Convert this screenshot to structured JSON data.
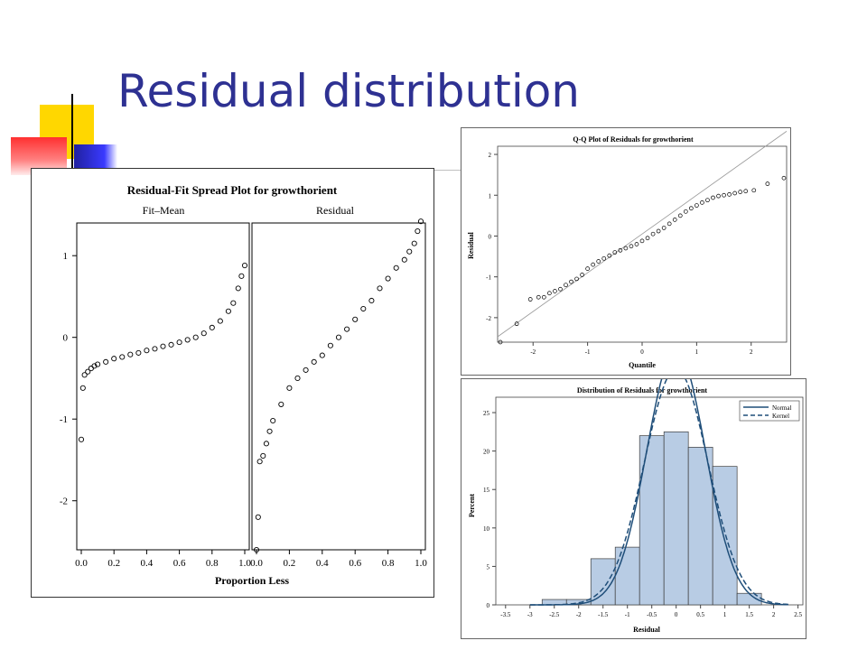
{
  "slide": {
    "title": "Residual distribution"
  },
  "chart_data": [
    {
      "type": "scatter",
      "title": "Residual-Fit Spread Plot for growthorient",
      "xlabel": "Proportion Less",
      "ylabel": "",
      "xlim": [
        0,
        1
      ],
      "ylim": [
        -2.6,
        1.4
      ],
      "yticks": [
        "-2",
        "-1",
        "0",
        "1"
      ],
      "xticks": [
        "0.0",
        "0.2",
        "0.4",
        "0.6",
        "0.8",
        "1.0"
      ],
      "grid": false,
      "panels": [
        {
          "name": "Fit–Mean",
          "x": [
            0.0,
            0.01,
            0.02,
            0.04,
            0.06,
            0.08,
            0.1,
            0.15,
            0.2,
            0.25,
            0.3,
            0.35,
            0.4,
            0.45,
            0.5,
            0.55,
            0.6,
            0.65,
            0.7,
            0.75,
            0.8,
            0.85,
            0.9,
            0.93,
            0.96,
            0.98,
            1.0
          ],
          "y": [
            -1.25,
            -0.62,
            -0.46,
            -0.42,
            -0.38,
            -0.35,
            -0.33,
            -0.3,
            -0.26,
            -0.24,
            -0.21,
            -0.19,
            -0.16,
            -0.14,
            -0.11,
            -0.09,
            -0.06,
            -0.03,
            0.0,
            0.05,
            0.12,
            0.2,
            0.32,
            0.42,
            0.6,
            0.75,
            0.88
          ]
        },
        {
          "name": "Residual",
          "x": [
            0.0,
            0.01,
            0.02,
            0.04,
            0.06,
            0.08,
            0.1,
            0.15,
            0.2,
            0.25,
            0.3,
            0.35,
            0.4,
            0.45,
            0.5,
            0.55,
            0.6,
            0.65,
            0.7,
            0.75,
            0.8,
            0.85,
            0.9,
            0.93,
            0.96,
            0.98,
            1.0
          ],
          "y": [
            -2.6,
            -2.2,
            -1.52,
            -1.45,
            -1.3,
            -1.15,
            -1.02,
            -0.82,
            -0.62,
            -0.5,
            -0.4,
            -0.3,
            -0.22,
            -0.1,
            0.0,
            0.1,
            0.22,
            0.35,
            0.45,
            0.6,
            0.72,
            0.85,
            0.95,
            1.05,
            1.15,
            1.3,
            1.42
          ]
        }
      ]
    },
    {
      "type": "scatter",
      "title": "Q-Q Plot of Residuals for growthorient",
      "xlabel": "Quantile",
      "ylabel": "Residual",
      "xlim": [
        -2.65,
        2.65
      ],
      "ylim": [
        -2.6,
        2.2
      ],
      "xticks": [
        "-2",
        "-1",
        "0",
        "1",
        "2"
      ],
      "yticks": [
        "-2",
        "-1",
        "0",
        "1",
        "2"
      ],
      "reference_line": {
        "intercept": 0.05,
        "slope": 0.95
      },
      "x": [
        -2.6,
        -2.3,
        -2.05,
        -1.9,
        -1.8,
        -1.7,
        -1.6,
        -1.5,
        -1.4,
        -1.3,
        -1.2,
        -1.1,
        -1.0,
        -0.9,
        -0.8,
        -0.7,
        -0.6,
        -0.5,
        -0.4,
        -0.3,
        -0.2,
        -0.1,
        0.0,
        0.1,
        0.2,
        0.3,
        0.4,
        0.5,
        0.6,
        0.7,
        0.8,
        0.9,
        1.0,
        1.1,
        1.2,
        1.3,
        1.4,
        1.5,
        1.6,
        1.7,
        1.8,
        1.9,
        2.05,
        2.3,
        2.6
      ],
      "y": [
        -2.6,
        -2.15,
        -1.55,
        -1.5,
        -1.5,
        -1.4,
        -1.35,
        -1.3,
        -1.2,
        -1.12,
        -1.05,
        -0.95,
        -0.8,
        -0.7,
        -0.62,
        -0.55,
        -0.48,
        -0.4,
        -0.35,
        -0.3,
        -0.25,
        -0.2,
        -0.12,
        -0.05,
        0.05,
        0.12,
        0.2,
        0.3,
        0.4,
        0.5,
        0.6,
        0.68,
        0.75,
        0.82,
        0.88,
        0.94,
        0.98,
        1.0,
        1.02,
        1.05,
        1.08,
        1.1,
        1.12,
        1.28,
        1.42
      ]
    },
    {
      "type": "bar",
      "title": "Distribution of Residuals for growthorient",
      "xlabel": "Residual",
      "ylabel": "Percent",
      "xlim": [
        -3.7,
        2.6
      ],
      "ylim": [
        0,
        27
      ],
      "xticks": [
        "-3.5",
        "-3",
        "-2.5",
        "-2",
        "-1.5",
        "-1",
        "-0.5",
        "0",
        "0.5",
        "1",
        "1.5",
        "2",
        "2.5"
      ],
      "yticks": [
        "0",
        "5",
        "10",
        "15",
        "20",
        "25"
      ],
      "bins": {
        "edges": [
          -2.75,
          -2.25,
          -1.75,
          -1.25,
          -0.75,
          -0.25,
          0.25,
          0.75,
          1.25,
          1.75
        ],
        "values": [
          0.7,
          0.7,
          6,
          7.5,
          22,
          22.5,
          20.5,
          18,
          1.5
        ]
      },
      "curves": {
        "normal": {
          "mean": 0.0,
          "sd": 0.6
        },
        "kernel": {
          "mean": 0.0,
          "sd": 0.65
        }
      },
      "legend": [
        "Normal",
        "Kernel"
      ],
      "legend_position": "top-right",
      "colors": {
        "bars": "#b8cce4",
        "bar_edge": "#3d3d3d",
        "curve": "#1f4e79"
      }
    }
  ]
}
